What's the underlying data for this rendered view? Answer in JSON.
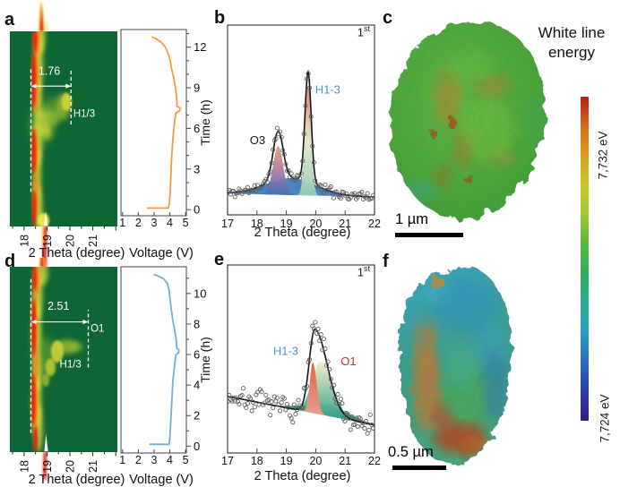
{
  "panels": {
    "a": "a",
    "b": "b",
    "c": "c",
    "d": "d",
    "e": "e",
    "f": "f"
  },
  "colorbar": {
    "title_line1": "White line",
    "title_line2": "energy",
    "top_label": "7,732 eV",
    "bottom_label": "7,724 eV",
    "gradient_stops": [
      "#b51f16",
      "#d96a15",
      "#d9a01e",
      "#cfc528",
      "#9fc832",
      "#55b83e",
      "#2fae58",
      "#29ad96",
      "#2a9fc0",
      "#2b6cc0",
      "#2a3fae",
      "#3a1a86"
    ]
  },
  "scalebars": {
    "c": "1 µm",
    "f": "0.5 µm"
  },
  "chart_data": [
    {
      "id": "map_a",
      "type": "heatmap",
      "panel": "a",
      "xlabel": "2 Theta (degree)",
      "xlim": [
        17.38,
        22.07
      ],
      "x_ticks": [
        18,
        19,
        20,
        21
      ],
      "time_range_h": [
        0,
        13
      ],
      "background_color": "#0e6634",
      "annotations": {
        "dash_lines": [
          {
            "x": 18.3,
            "t0": 2.3,
            "t1": 10.6
          },
          {
            "x": 20.05,
            "t0": 6.8,
            "t1": 10.4
          }
        ],
        "arrow": {
          "x0": 18.3,
          "x1": 20.05,
          "t": 9.35
        },
        "separation_label": "1.76",
        "separation_pos": [
          19.1,
          10.1
        ],
        "phase_labels": [
          {
            "text": "H1/3",
            "x": 20.15,
            "t": 7.3
          }
        ]
      }
    },
    {
      "id": "voltage_a",
      "type": "line",
      "xlabel": "Voltage (V)",
      "ylabel": "Time (h)",
      "xlim": [
        0.9,
        5.05
      ],
      "x_ticks": [
        1,
        2,
        3,
        4,
        5
      ],
      "ylim": [
        -0.45,
        13.3
      ],
      "y_ticks": [
        0,
        3,
        6,
        9,
        12
      ],
      "y_minor_step": 1,
      "color": "#f59a40",
      "points_v_t": [
        [
          2.55,
          0.12
        ],
        [
          3.9,
          0.12
        ],
        [
          3.97,
          0.45
        ],
        [
          4.02,
          1.3
        ],
        [
          4.07,
          2.6
        ],
        [
          4.12,
          3.9
        ],
        [
          4.18,
          5.0
        ],
        [
          4.27,
          6.1
        ],
        [
          4.35,
          6.9
        ],
        [
          4.39,
          7.15
        ],
        [
          4.62,
          7.28
        ],
        [
          4.65,
          7.5
        ],
        [
          4.46,
          7.62
        ],
        [
          4.43,
          8.3
        ],
        [
          4.36,
          9.0
        ],
        [
          4.26,
          9.7
        ],
        [
          4.12,
          10.4
        ],
        [
          4.02,
          11.0
        ],
        [
          3.9,
          11.5
        ],
        [
          3.72,
          12.0
        ],
        [
          3.42,
          12.4
        ],
        [
          3.08,
          12.65
        ],
        [
          2.85,
          12.75
        ]
      ]
    },
    {
      "id": "fit_b",
      "type": "xrd_fit",
      "cycle": {
        "number": "1",
        "suffix": "st"
      },
      "xlabel": "2 Theta (degree)",
      "xlim": [
        17,
        22
      ],
      "x_ticks": [
        17,
        18,
        19,
        20,
        21,
        22
      ],
      "baseline": [
        0.105,
        0.085
      ],
      "noise": 0.014,
      "components": [
        {
          "name": "background",
          "center": 19.15,
          "sigma_l": 0.85,
          "sigma_r": 0.85,
          "amplitude": 0.1,
          "fill": [
            "#3b79ba"
          ],
          "opacity": 0.92
        },
        {
          "name": "O3",
          "center": 18.72,
          "sigma_l": 0.17,
          "sigma_r": 0.17,
          "amplitude": 0.29,
          "fill": [
            "#ee9a76",
            "#a87aa6",
            "#3a6db5"
          ],
          "opacity": 0.95
        },
        {
          "name": "H1-3",
          "center": 19.74,
          "sigma_l": 0.105,
          "sigma_r": 0.105,
          "amplitude": 0.655,
          "fill": [
            "#df7a60",
            "#e2e8c8",
            "#8fccb6"
          ],
          "opacity": 0.95
        }
      ],
      "fit_from_components": true,
      "labels": [
        {
          "text": "O3",
          "x": 18.02,
          "v": 0.4,
          "color": "#1a1a1a",
          "anchor": "middle"
        },
        {
          "text": "H1-3",
          "x": 19.98,
          "v": 0.7,
          "color": "#4f93c8",
          "anchor": "start"
        }
      ]
    },
    {
      "id": "map_d",
      "type": "heatmap",
      "panel": "d",
      "xlabel": "2 Theta (degree)",
      "xlim": [
        17.38,
        22.07
      ],
      "x_ticks": [
        18,
        19,
        20,
        21
      ],
      "time_range_h": [
        0,
        11.6
      ],
      "background_color": "#0e6634",
      "annotations": {
        "dash_lines": [
          {
            "x": 18.3,
            "t0": 1.2,
            "t1": 10.9
          },
          {
            "x": 20.8,
            "t0": 5.3,
            "t1": 8.9
          }
        ],
        "arrow": {
          "x0": 18.3,
          "x1": 20.8,
          "t": 8.15
        },
        "separation_label": "2.51",
        "separation_pos": [
          19.5,
          8.9
        ],
        "phase_labels": [
          {
            "text": "O1",
            "x": 20.9,
            "t": 7.55
          },
          {
            "text": "H1/3",
            "x": 19.55,
            "t": 5.3
          }
        ]
      }
    },
    {
      "id": "voltage_d",
      "type": "line",
      "xlabel": "Voltage (V)",
      "ylabel": "Time (h)",
      "xlim": [
        0.9,
        5.05
      ],
      "x_ticks": [
        1,
        2,
        3,
        4,
        5
      ],
      "ylim": [
        -0.45,
        11.75
      ],
      "y_ticks": [
        0,
        2,
        4,
        6,
        8,
        10
      ],
      "y_minor_step": 1,
      "color": "#74aed6",
      "points_v_t": [
        [
          2.7,
          0.12
        ],
        [
          3.95,
          0.12
        ],
        [
          4.0,
          0.5
        ],
        [
          4.05,
          1.4
        ],
        [
          4.1,
          2.4
        ],
        [
          4.15,
          3.4
        ],
        [
          4.2,
          4.3
        ],
        [
          4.28,
          5.1
        ],
        [
          4.36,
          5.8
        ],
        [
          4.4,
          6.0
        ],
        [
          4.56,
          6.12
        ],
        [
          4.58,
          6.3
        ],
        [
          4.44,
          6.42
        ],
        [
          4.4,
          7.0
        ],
        [
          4.31,
          7.6
        ],
        [
          4.2,
          8.2
        ],
        [
          4.1,
          8.9
        ],
        [
          4.02,
          9.6
        ],
        [
          3.95,
          10.2
        ],
        [
          3.85,
          10.65
        ],
        [
          3.62,
          10.95
        ],
        [
          3.25,
          11.15
        ],
        [
          2.98,
          11.25
        ]
      ]
    },
    {
      "id": "fit_e",
      "type": "xrd_fit",
      "cycle": {
        "number": "1",
        "suffix": "st"
      },
      "xlabel": "2 Theta (degree)",
      "xlim": [
        17,
        22
      ],
      "x_ticks": [
        17,
        18,
        19,
        20,
        21,
        22
      ],
      "baseline": [
        0.315,
        0.145
      ],
      "noise": 0.03,
      "components": [
        {
          "name": "base",
          "center": 20.35,
          "sigma_l": 0.7,
          "sigma_r": 0.7,
          "amplitude": 0.07,
          "fill": [
            "#2f9180"
          ],
          "opacity": 0.95
        },
        {
          "name": "O1",
          "center": 20.17,
          "sigma_l": 0.3,
          "sigma_r": 0.4,
          "amplitude": 0.315,
          "fill": [
            "#f3efc5",
            "#35a08c"
          ],
          "opacity": 0.95
        },
        {
          "name": "H1-3",
          "center": 19.9,
          "sigma_l": 0.1,
          "sigma_r": 0.13,
          "amplitude": 0.3,
          "fill": [
            "#e4573f",
            "#eda18f"
          ],
          "opacity": 0.95
        }
      ],
      "fit_peak": {
        "center": 19.97,
        "sigma_l": 0.19,
        "sigma_r": 0.42,
        "amplitude": 0.5
      },
      "labels": [
        {
          "text": "H1-3",
          "x": 18.55,
          "v": 0.56,
          "color": "#4f93c8",
          "anchor": "start"
        },
        {
          "text": "O1",
          "x": 20.85,
          "v": 0.5,
          "color": "#b5372a",
          "anchor": "start"
        }
      ]
    }
  ]
}
